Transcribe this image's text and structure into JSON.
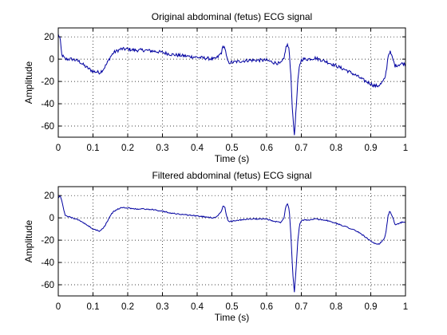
{
  "chart_data": [
    {
      "type": "line",
      "title": "Original abdominal (fetus) ECG signal",
      "xlabel": "Time (s)",
      "ylabel": "Amplitude",
      "xlim": [
        0,
        1
      ],
      "ylim": [
        -70,
        28
      ],
      "xticks": [
        "0",
        "0.1",
        "0.2",
        "0.3",
        "0.4",
        "0.5",
        "0.6",
        "0.7",
        "0.8",
        "0.9",
        "1"
      ],
      "yticks": [
        "20",
        "0",
        "-20",
        "-40",
        "-60"
      ],
      "grid": true,
      "line_color": "#0000a0",
      "noise": 1.5,
      "x": [
        0,
        0.005,
        0.01,
        0.02,
        0.04,
        0.06,
        0.08,
        0.1,
        0.12,
        0.13,
        0.14,
        0.15,
        0.16,
        0.18,
        0.2,
        0.22,
        0.25,
        0.28,
        0.3,
        0.33,
        0.36,
        0.39,
        0.42,
        0.45,
        0.46,
        0.47,
        0.475,
        0.48,
        0.485,
        0.49,
        0.5,
        0.52,
        0.55,
        0.58,
        0.6,
        0.62,
        0.64,
        0.65,
        0.655,
        0.66,
        0.665,
        0.67,
        0.675,
        0.68,
        0.685,
        0.69,
        0.695,
        0.7,
        0.705,
        0.71,
        0.72,
        0.74,
        0.77,
        0.8,
        0.83,
        0.86,
        0.88,
        0.9,
        0.91,
        0.92,
        0.93,
        0.94,
        0.945,
        0.95,
        0.955,
        0.96,
        0.97,
        0.98,
        0.99,
        1.0
      ],
      "y": [
        22,
        19,
        4,
        0,
        0,
        -2,
        -7,
        -11,
        -12,
        -9,
        -4,
        2,
        6,
        9,
        9,
        8,
        8,
        7,
        6,
        4,
        3,
        2,
        1,
        0,
        2,
        6,
        12,
        10,
        1,
        -3,
        -3,
        -2,
        -1,
        -1,
        -1,
        -3,
        -4,
        0,
        10,
        13,
        8,
        -15,
        -50,
        -68,
        -45,
        -20,
        -5,
        -1,
        0,
        0,
        0,
        1,
        -2,
        -6,
        -10,
        -15,
        -19,
        -22,
        -24,
        -24,
        -22,
        -18,
        -10,
        3,
        7,
        3,
        -6,
        -5,
        -4,
        -4
      ]
    },
    {
      "type": "line",
      "title": "Filtered abdominal (fetus) ECG signal",
      "xlabel": "Time (s)",
      "ylabel": "Amplitude",
      "xlim": [
        0,
        1
      ],
      "ylim": [
        -70,
        28
      ],
      "xticks": [
        "0",
        "0.1",
        "0.2",
        "0.3",
        "0.4",
        "0.5",
        "0.6",
        "0.7",
        "0.8",
        "0.9",
        "1"
      ],
      "yticks": [
        "20",
        "0",
        "-20",
        "-40",
        "-60"
      ],
      "grid": true,
      "line_color": "#0000a0",
      "noise": 0.5,
      "x": [
        0,
        0.005,
        0.01,
        0.02,
        0.04,
        0.06,
        0.08,
        0.1,
        0.12,
        0.13,
        0.14,
        0.15,
        0.16,
        0.18,
        0.2,
        0.22,
        0.25,
        0.28,
        0.3,
        0.33,
        0.36,
        0.39,
        0.42,
        0.45,
        0.46,
        0.47,
        0.475,
        0.48,
        0.485,
        0.49,
        0.5,
        0.52,
        0.55,
        0.58,
        0.6,
        0.62,
        0.64,
        0.65,
        0.655,
        0.66,
        0.665,
        0.67,
        0.675,
        0.68,
        0.685,
        0.69,
        0.695,
        0.7,
        0.705,
        0.71,
        0.72,
        0.74,
        0.77,
        0.8,
        0.83,
        0.86,
        0.88,
        0.9,
        0.91,
        0.92,
        0.93,
        0.94,
        0.945,
        0.95,
        0.955,
        0.96,
        0.97,
        0.98,
        0.99,
        1.0
      ],
      "y": [
        18,
        20,
        15,
        2,
        0,
        -2,
        -6,
        -10,
        -12,
        -9,
        -4,
        2,
        6,
        9,
        9,
        8,
        8,
        7,
        6,
        4,
        3,
        2,
        1,
        0,
        2,
        6,
        11,
        9,
        1,
        -3,
        -3,
        -2,
        -1,
        -1,
        -1,
        -3,
        -4,
        0,
        10,
        13,
        8,
        -15,
        -48,
        -67,
        -45,
        -20,
        -6,
        -3,
        -2,
        -2,
        -2,
        -1,
        -2,
        -5,
        -8,
        -12,
        -16,
        -21,
        -23,
        -24,
        -22,
        -18,
        -10,
        2,
        6,
        3,
        -6,
        -5,
        -4,
        -4
      ]
    }
  ]
}
